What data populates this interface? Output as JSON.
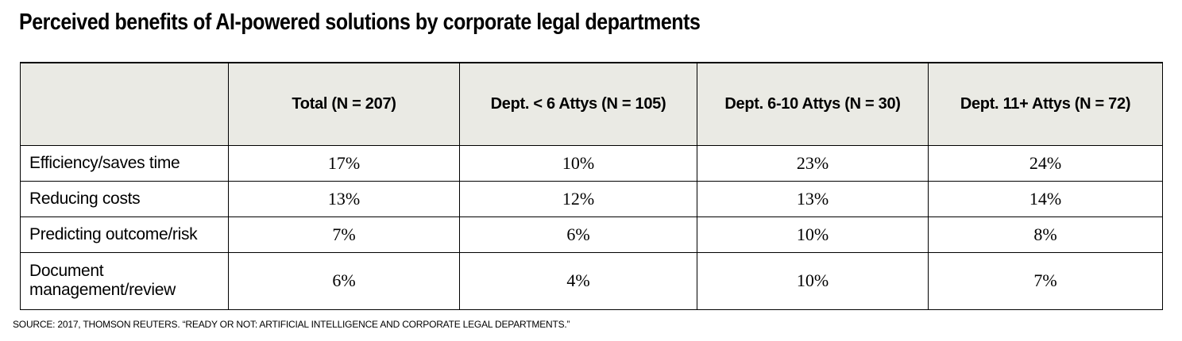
{
  "title": "Perceived benefits of AI-powered solutions by corporate legal departments",
  "table": {
    "columns": [
      "",
      "Total (N = 207)",
      "Dept. < 6 Attys (N = 105)",
      "Dept. 6-10 Attys (N = 30)",
      "Dept. 11+ Attys (N = 72)"
    ],
    "rows": [
      {
        "label": "Efficiency/saves time",
        "values": [
          "17%",
          "10%",
          "23%",
          "24%"
        ]
      },
      {
        "label": "Reducing costs",
        "values": [
          "13%",
          "12%",
          "13%",
          "14%"
        ]
      },
      {
        "label": "Predicting outcome/risk",
        "values": [
          "7%",
          "6%",
          "10%",
          "8%"
        ]
      },
      {
        "label": "Document management/review",
        "values": [
          "6%",
          "4%",
          "10%",
          "7%"
        ]
      }
    ]
  },
  "source_note": "SOURCE: 2017, THOMSON REUTERS. “READY OR NOT: ARTIFICIAL INTELLIGENCE AND CORPORATE LEGAL DEPARTMENTS.”",
  "colors": {
    "header_bg": "#eaeae4",
    "border": "#000000",
    "text": "#000000",
    "page_bg": "#ffffff"
  },
  "chart_data": {
    "type": "table",
    "title": "Perceived benefits of AI-powered solutions by corporate legal departments",
    "categories": [
      "Efficiency/saves time",
      "Reducing costs",
      "Predicting outcome/risk",
      "Document management/review"
    ],
    "series": [
      {
        "name": "Total (N = 207)",
        "n": 207,
        "values": [
          17,
          13,
          7,
          6
        ]
      },
      {
        "name": "Dept. < 6 Attys (N = 105)",
        "n": 105,
        "values": [
          10,
          12,
          6,
          4
        ]
      },
      {
        "name": "Dept. 6-10 Attys (N = 30)",
        "n": 30,
        "values": [
          23,
          13,
          10,
          10
        ]
      },
      {
        "name": "Dept. 11+ Attys (N = 72)",
        "n": 72,
        "values": [
          24,
          14,
          8,
          7
        ]
      }
    ],
    "unit": "%",
    "source": "SOURCE: 2017, THOMSON REUTERS. “READY OR NOT: ARTIFICIAL INTELLIGENCE AND CORPORATE LEGAL DEPARTMENTS.”"
  }
}
